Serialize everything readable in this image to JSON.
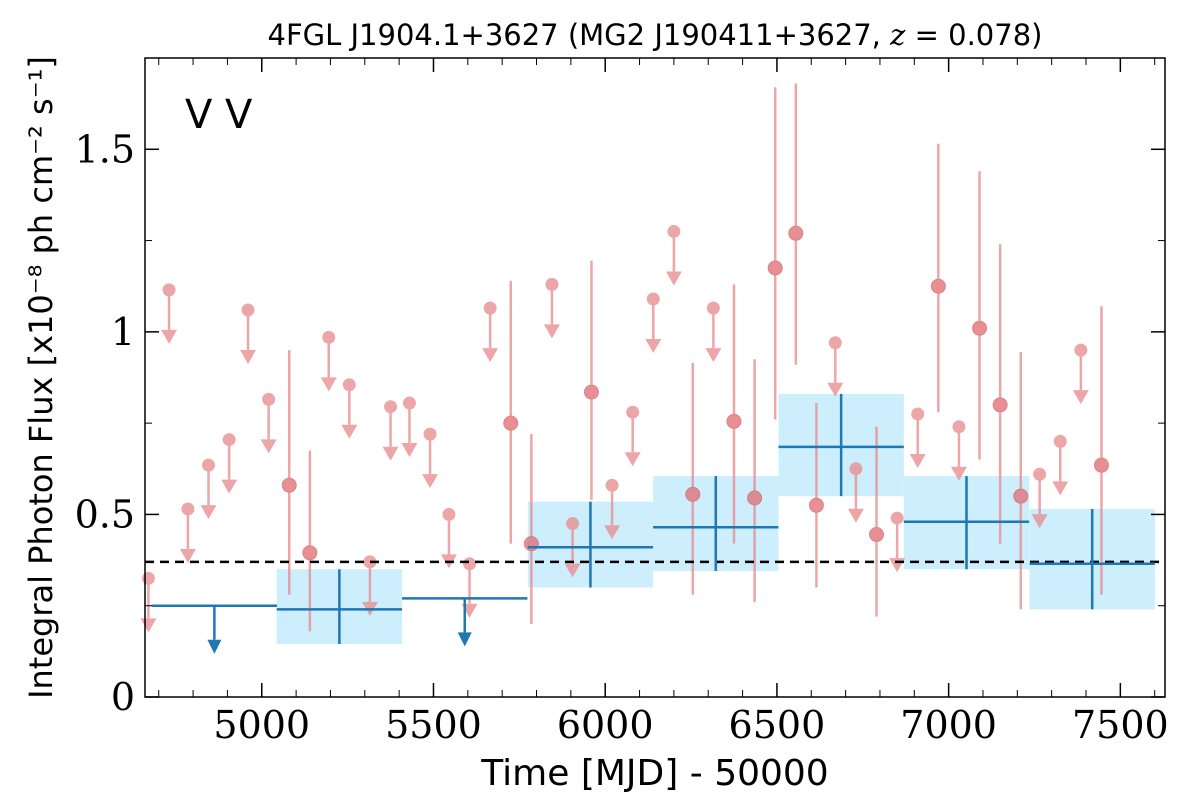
{
  "chart_data": {
    "type": "scatter",
    "title": "4FGL J1904.1+3627 (MG2 J190411+3627, z = 0.078)",
    "xlabel": "Time [MJD] - 50000",
    "ylabel": "Integral Photon Flux [x10⁻⁸ ph cm⁻² s⁻¹]",
    "xlim": [
      4660,
      7630
    ],
    "ylim": [
      0,
      1.75
    ],
    "xticks": [
      5000,
      5500,
      6000,
      6500,
      7000,
      7500
    ],
    "xtick_labels": [
      "5000",
      "5500",
      "6000",
      "6500",
      "7000",
      "7500"
    ],
    "yticks": [
      0,
      0.5,
      1,
      1.5
    ],
    "ytick_labels": [
      "0",
      "0.5",
      "1",
      "1.5"
    ],
    "grid": false,
    "corner_labels": [
      {
        "text": "V",
        "color": "#1f77b4"
      },
      {
        "text": "V",
        "color": "#d62728"
      }
    ],
    "reference_line": {
      "y": 0.37,
      "style": "dashed",
      "color": "#000000"
    },
    "colors": {
      "long_bins": "#1f77b4",
      "long_bins_band": "#cdeefc",
      "short_bins": "#e8898c"
    },
    "series": [
      {
        "bin_width": 365,
        "color": "#1f77b4",
        "band_color": "#cdeefc",
        "points": [
          {
            "x": 4862,
            "y": 0.25,
            "upper_limit": true
          },
          {
            "x": 5226,
            "y": 0.24,
            "lo": 0.145,
            "hi": 0.35
          },
          {
            "x": 5591,
            "y": 0.27,
            "upper_limit": true
          },
          {
            "x": 5957,
            "y": 0.41,
            "lo": 0.3,
            "hi": 0.535
          },
          {
            "x": 6322,
            "y": 0.465,
            "lo": 0.345,
            "hi": 0.605
          },
          {
            "x": 6687,
            "y": 0.685,
            "lo": 0.55,
            "hi": 0.83
          },
          {
            "x": 7052,
            "y": 0.48,
            "lo": 0.35,
            "hi": 0.605
          },
          {
            "x": 7418,
            "y": 0.365,
            "lo": 0.24,
            "hi": 0.515
          }
        ]
      },
      {
        "bin_width": 57,
        "color": "#e8898c",
        "points": [
          {
            "x": 4670,
            "y": 0.325,
            "upper_limit": true
          },
          {
            "x": 4730,
            "y": 1.115,
            "upper_limit": true
          },
          {
            "x": 4785,
            "y": 0.515,
            "upper_limit": true
          },
          {
            "x": 4845,
            "y": 0.635,
            "upper_limit": true
          },
          {
            "x": 4905,
            "y": 0.705,
            "upper_limit": true
          },
          {
            "x": 4960,
            "y": 1.06,
            "upper_limit": true
          },
          {
            "x": 5020,
            "y": 0.815,
            "upper_limit": true
          },
          {
            "x": 5080,
            "y": 0.58,
            "lo": 0.28,
            "hi": 0.95
          },
          {
            "x": 5140,
            "y": 0.395,
            "lo": 0.18,
            "hi": 0.675
          },
          {
            "x": 5195,
            "y": 0.985,
            "upper_limit": true
          },
          {
            "x": 5255,
            "y": 0.855,
            "upper_limit": true
          },
          {
            "x": 5315,
            "y": 0.37,
            "upper_limit": true
          },
          {
            "x": 5375,
            "y": 0.795,
            "upper_limit": true
          },
          {
            "x": 5430,
            "y": 0.805,
            "upper_limit": true
          },
          {
            "x": 5490,
            "y": 0.72,
            "upper_limit": true
          },
          {
            "x": 5545,
            "y": 0.5,
            "upper_limit": true
          },
          {
            "x": 5605,
            "y": 0.365,
            "upper_limit": true
          },
          {
            "x": 5665,
            "y": 1.065,
            "upper_limit": true
          },
          {
            "x": 5725,
            "y": 0.75,
            "lo": 0.42,
            "hi": 1.14
          },
          {
            "x": 5785,
            "y": 0.42,
            "lo": 0.2,
            "hi": 0.72
          },
          {
            "x": 5845,
            "y": 1.13,
            "upper_limit": true
          },
          {
            "x": 5905,
            "y": 0.475,
            "upper_limit": true
          },
          {
            "x": 5960,
            "y": 0.835,
            "lo": 0.54,
            "hi": 1.195
          },
          {
            "x": 6020,
            "y": 0.58,
            "upper_limit": true
          },
          {
            "x": 6080,
            "y": 0.78,
            "upper_limit": true
          },
          {
            "x": 6140,
            "y": 1.09,
            "upper_limit": true
          },
          {
            "x": 6200,
            "y": 1.275,
            "upper_limit": true
          },
          {
            "x": 6255,
            "y": 0.555,
            "lo": 0.28,
            "hi": 0.915
          },
          {
            "x": 6315,
            "y": 1.065,
            "upper_limit": true
          },
          {
            "x": 6375,
            "y": 0.755,
            "lo": 0.42,
            "hi": 1.13
          },
          {
            "x": 6435,
            "y": 0.545,
            "lo": 0.26,
            "hi": 0.925
          },
          {
            "x": 6495,
            "y": 1.175,
            "lo": 0.76,
            "hi": 1.67
          },
          {
            "x": 6555,
            "y": 1.27,
            "lo": 0.91,
            "hi": 1.68
          },
          {
            "x": 6615,
            "y": 0.525,
            "lo": 0.3,
            "hi": 0.805
          },
          {
            "x": 6670,
            "y": 0.97,
            "upper_limit": true
          },
          {
            "x": 6730,
            "y": 0.625,
            "upper_limit": true
          },
          {
            "x": 6790,
            "y": 0.445,
            "lo": 0.22,
            "hi": 0.74
          },
          {
            "x": 6850,
            "y": 0.49,
            "upper_limit": true
          },
          {
            "x": 6910,
            "y": 0.775,
            "upper_limit": true
          },
          {
            "x": 6970,
            "y": 1.125,
            "lo": 0.78,
            "hi": 1.515
          },
          {
            "x": 7030,
            "y": 0.74,
            "upper_limit": true
          },
          {
            "x": 7090,
            "y": 1.01,
            "lo": 0.65,
            "hi": 1.44
          },
          {
            "x": 7150,
            "y": 0.8,
            "lo": 0.42,
            "hi": 1.24
          },
          {
            "x": 7210,
            "y": 0.55,
            "lo": 0.24,
            "hi": 0.945
          },
          {
            "x": 7265,
            "y": 0.61,
            "upper_limit": true
          },
          {
            "x": 7325,
            "y": 0.7,
            "upper_limit": true
          },
          {
            "x": 7385,
            "y": 0.95,
            "upper_limit": true
          },
          {
            "x": 7445,
            "y": 0.635,
            "lo": 0.28,
            "hi": 1.07
          }
        ]
      }
    ]
  }
}
